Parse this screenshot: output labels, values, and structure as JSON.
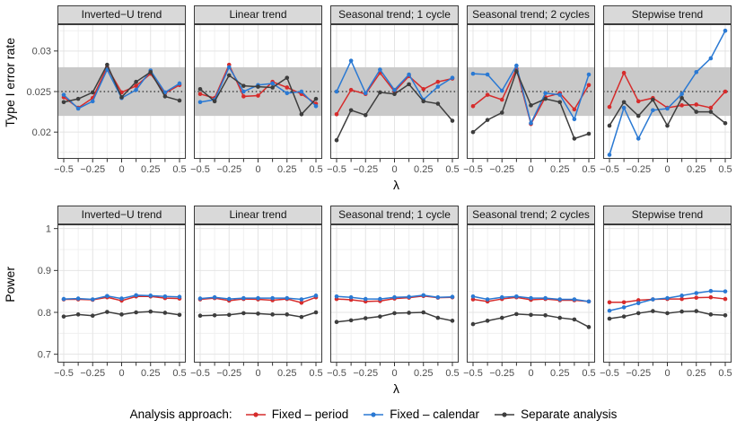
{
  "chart_data": {
    "type": "line",
    "xlabel": "λ",
    "legend_title": "Analysis approach:",
    "x": [
      -0.5,
      -0.375,
      -0.25,
      -0.125,
      0,
      0.125,
      0.25,
      0.375,
      0.5
    ],
    "x_major_ticks": {
      "values": [
        -0.5,
        -0.25,
        0,
        0.25,
        0.5
      ],
      "labels": [
        "−0.5",
        "−0.25",
        "0",
        "0.25",
        "0.5"
      ]
    },
    "x_minor_ticks": [
      -0.375,
      -0.125,
      0.125,
      0.375
    ],
    "grid": true,
    "legend_position": "bottom",
    "series": [
      {
        "id": "fixed_period",
        "label": "Fixed – period",
        "color": "#d62b2b"
      },
      {
        "id": "fixed_calendar",
        "label": "Fixed – calendar",
        "color": "#2a79d3"
      },
      {
        "id": "separate",
        "label": "Separate analysis",
        "color": "#3d3d3d"
      }
    ],
    "rows": [
      {
        "ylabel": "Type I error rate",
        "ylim": [
          0.0167,
          0.0333
        ],
        "yticks": {
          "values": [
            0.02,
            0.025,
            0.03
          ],
          "labels": [
            "0.02",
            "0.025",
            "0.03"
          ]
        },
        "yminor": [
          0.0175,
          0.0225,
          0.0275,
          0.0325
        ],
        "ref_line": 0.025,
        "band": [
          0.022,
          0.028
        ],
        "panels": [
          {
            "title": "Inverted−U trend",
            "series": {
              "fixed_period": [
                0.0243,
                0.023,
                0.0242,
                0.028,
                0.0249,
                0.0257,
                0.0272,
                0.0248,
                0.0258
              ],
              "fixed_calendar": [
                0.0246,
                0.0229,
                0.0238,
                0.0277,
                0.0242,
                0.0252,
                0.0276,
                0.0249,
                0.026
              ],
              "separate": [
                0.0237,
                0.0241,
                0.0249,
                0.0283,
                0.0243,
                0.0262,
                0.0274,
                0.0244,
                0.0239
              ]
            }
          },
          {
            "title": "Linear trend",
            "series": {
              "fixed_period": [
                0.0247,
                0.0242,
                0.0283,
                0.0244,
                0.0245,
                0.0262,
                0.0255,
                0.0247,
                0.0235
              ],
              "fixed_calendar": [
                0.0237,
                0.024,
                0.028,
                0.025,
                0.0258,
                0.026,
                0.0248,
                0.025,
                0.0232
              ],
              "separate": [
                0.0253,
                0.0238,
                0.027,
                0.0257,
                0.0256,
                0.0255,
                0.0267,
                0.0222,
                0.0241
              ]
            }
          },
          {
            "title": "Seasonal trend; 1 cycle",
            "series": {
              "fixed_period": [
                0.0222,
                0.0252,
                0.0247,
                0.0273,
                0.025,
                0.0269,
                0.0253,
                0.0262,
                0.0266
              ],
              "fixed_calendar": [
                0.025,
                0.0288,
                0.0248,
                0.0277,
                0.0252,
                0.0271,
                0.024,
                0.0256,
                0.0267
              ],
              "separate": [
                0.019,
                0.0227,
                0.0221,
                0.0249,
                0.0247,
                0.0259,
                0.0238,
                0.0235,
                0.0214
              ]
            }
          },
          {
            "title": "Seasonal trend; 2 cycles",
            "series": {
              "fixed_period": [
                0.0232,
                0.0246,
                0.024,
                0.0278,
                0.021,
                0.0243,
                0.0248,
                0.0228,
                0.0258
              ],
              "fixed_calendar": [
                0.0272,
                0.0271,
                0.0251,
                0.0282,
                0.0211,
                0.0248,
                0.0246,
                0.0216,
                0.0271
              ],
              "separate": [
                0.02,
                0.0215,
                0.0224,
                0.0275,
                0.0233,
                0.0241,
                0.0237,
                0.0192,
                0.0198
              ]
            }
          },
          {
            "title": "Stepwise trend",
            "series": {
              "fixed_period": [
                0.0231,
                0.0273,
                0.0238,
                0.0242,
                0.023,
                0.0233,
                0.0234,
                0.023,
                0.025
              ],
              "fixed_calendar": [
                0.0172,
                0.023,
                0.0192,
                0.0227,
                0.0229,
                0.0247,
                0.0274,
                0.0291,
                0.0325
              ],
              "separate": [
                0.0208,
                0.0237,
                0.022,
                0.024,
                0.0208,
                0.0242,
                0.0225,
                0.0225,
                0.0211
              ]
            }
          }
        ]
      },
      {
        "ylabel": "Power",
        "ylim": [
          0.68,
          1.01
        ],
        "yticks": {
          "values": [
            0.7,
            0.8,
            0.9,
            1
          ],
          "labels": [
            "0.7",
            "0.8",
            "0.9",
            "1"
          ]
        },
        "yminor": [
          0.75,
          0.85,
          0.95
        ],
        "panels": [
          {
            "title": "Inverted−U trend",
            "series": {
              "fixed_period": [
                0.831,
                0.831,
                0.83,
                0.836,
                0.828,
                0.838,
                0.838,
                0.834,
                0.833
              ],
              "fixed_calendar": [
                0.832,
                0.833,
                0.831,
                0.839,
                0.833,
                0.841,
                0.84,
                0.838,
                0.837
              ],
              "separate": [
                0.79,
                0.795,
                0.792,
                0.801,
                0.795,
                0.8,
                0.802,
                0.799,
                0.794
              ]
            }
          },
          {
            "title": "Linear trend",
            "series": {
              "fixed_period": [
                0.831,
                0.834,
                0.828,
                0.832,
                0.831,
                0.829,
                0.832,
                0.823,
                0.836
              ],
              "fixed_calendar": [
                0.833,
                0.836,
                0.832,
                0.834,
                0.834,
                0.834,
                0.834,
                0.831,
                0.84
              ],
              "separate": [
                0.792,
                0.793,
                0.794,
                0.798,
                0.797,
                0.795,
                0.795,
                0.789,
                0.8
              ]
            }
          },
          {
            "title": "Seasonal trend; 1 cycle",
            "series": {
              "fixed_period": [
                0.832,
                0.83,
                0.826,
                0.827,
                0.833,
                0.835,
                0.839,
                0.835,
                0.836
              ],
              "fixed_calendar": [
                0.838,
                0.836,
                0.832,
                0.832,
                0.836,
                0.837,
                0.841,
                0.836,
                0.837
              ],
              "separate": [
                0.777,
                0.781,
                0.786,
                0.79,
                0.798,
                0.799,
                0.8,
                0.787,
                0.78
              ]
            }
          },
          {
            "title": "Seasonal trend; 2 cycles",
            "series": {
              "fixed_period": [
                0.831,
                0.826,
                0.832,
                0.836,
                0.83,
                0.832,
                0.829,
                0.829,
                0.826
              ],
              "fixed_calendar": [
                0.838,
                0.831,
                0.836,
                0.838,
                0.834,
                0.834,
                0.831,
                0.831,
                0.826
              ],
              "separate": [
                0.772,
                0.78,
                0.787,
                0.796,
                0.794,
                0.793,
                0.787,
                0.783,
                0.765
              ]
            }
          },
          {
            "title": "Stepwise trend",
            "series": {
              "fixed_period": [
                0.824,
                0.824,
                0.829,
                0.831,
                0.832,
                0.832,
                0.835,
                0.836,
                0.832
              ],
              "fixed_calendar": [
                0.804,
                0.812,
                0.822,
                0.831,
                0.834,
                0.84,
                0.846,
                0.851,
                0.85
              ],
              "separate": [
                0.785,
                0.79,
                0.798,
                0.803,
                0.798,
                0.802,
                0.803,
                0.795,
                0.793
              ]
            }
          }
        ]
      }
    ],
    "style_colors": {
      "band": "#c9c9c9",
      "strip_bg": "#d9d9d9",
      "panel_border": "#3c3c3c",
      "grid_major": "#e4e4e4",
      "grid_minor": "#f0f0f0",
      "tick_label": "#4d4d4d",
      "ref_line": "#000000"
    }
  }
}
